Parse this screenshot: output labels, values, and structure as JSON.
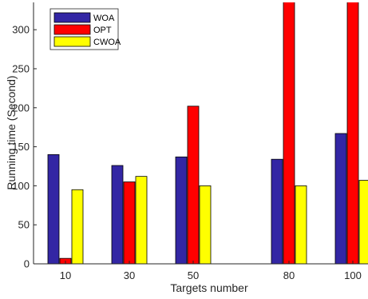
{
  "chart_data": {
    "type": "bar",
    "title": "",
    "xlabel": "Targets number",
    "ylabel": "Running time  (Second)",
    "x": [
      10,
      30,
      50,
      80,
      100
    ],
    "x_tick_labels": [
      "10",
      "30",
      "50",
      "80",
      "100"
    ],
    "xlim": [
      0,
      105
    ],
    "ylim": [
      0,
      335
    ],
    "y_ticks": [
      0,
      50,
      100,
      150,
      200,
      250,
      300
    ],
    "y_tick_labels": [
      "0",
      "50",
      "100",
      "150",
      "200",
      "250",
      "300"
    ],
    "grid": false,
    "legend_position": "top-left",
    "series": [
      {
        "name": "WOA",
        "color": "#3326a4",
        "values": [
          140,
          126,
          137,
          134,
          167
        ]
      },
      {
        "name": "OPT",
        "color": "#ff0000",
        "values": [
          7,
          105,
          202,
          340,
          340
        ]
      },
      {
        "name": "CWOA",
        "color": "#ffff00",
        "values": [
          95,
          112,
          100,
          100,
          107
        ]
      }
    ]
  }
}
